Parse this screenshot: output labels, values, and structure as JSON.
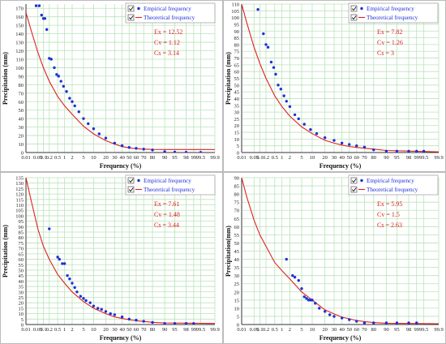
{
  "legend": {
    "empirical_label": "Empirical frequency",
    "theoretical_label": "Theoretical frequency"
  },
  "axes": {
    "xlabel": "Frequency (%)",
    "ylabels": [
      "Precipitation (mm)",
      "Precipitation (mm)",
      "Precipitation (mm)",
      "Precipitation(mm)"
    ]
  },
  "colors": {
    "grid": "#b9e3b9",
    "empirical": "#1f2fd6",
    "theoretical": "#e02020",
    "stats_text": "#e02020",
    "axis": "#333333"
  },
  "chart_data": [
    {
      "type": "scatter",
      "xscale": "probability",
      "x_ticks": [
        0.01,
        0.05,
        0.1,
        0.2,
        0.5,
        1,
        2,
        5,
        10,
        20,
        30,
        40,
        50,
        60,
        70,
        80,
        90,
        95,
        98,
        99,
        99.5,
        99.9
      ],
      "x_tick_labels": [
        "0.01",
        "0.05",
        "0.1",
        "0.2",
        "0.5",
        "1",
        "2",
        "5",
        "10",
        "20",
        "30",
        "40",
        "50",
        "60",
        "70",
        "80",
        "90",
        "95",
        "98",
        "99",
        "99.5",
        "99.9"
      ],
      "ylim": [
        0,
        175
      ],
      "y_ticks": [
        0,
        10,
        20,
        30,
        40,
        50,
        60,
        70,
        80,
        90,
        100,
        110,
        120,
        130,
        140,
        150,
        160,
        170
      ],
      "stats": [
        "Ex = 12.52",
        "Cv = 1.12",
        "Cs = 3.14"
      ],
      "series": [
        {
          "name": "Empirical frequency",
          "points": [
            [
              0.04,
              173
            ],
            [
              0.06,
              173
            ],
            [
              0.08,
              162
            ],
            [
              0.1,
              158
            ],
            [
              0.12,
              158
            ],
            [
              0.15,
              145
            ],
            [
              0.2,
              111
            ],
            [
              0.25,
              110
            ],
            [
              0.35,
              100
            ],
            [
              0.45,
              92
            ],
            [
              0.55,
              90
            ],
            [
              0.7,
              84
            ],
            [
              0.9,
              78
            ],
            [
              1.2,
              72
            ],
            [
              1.6,
              64
            ],
            [
              2,
              60
            ],
            [
              2.5,
              55
            ],
            [
              3.5,
              48
            ],
            [
              5,
              40
            ],
            [
              7,
              34
            ],
            [
              10,
              28
            ],
            [
              14,
              22
            ],
            [
              20,
              17
            ],
            [
              30,
              11
            ],
            [
              40,
              8
            ],
            [
              50,
              6
            ],
            [
              60,
              5
            ],
            [
              70,
              4
            ],
            [
              80,
              3
            ],
            [
              90,
              1
            ],
            [
              95,
              0.5
            ],
            [
              98,
              0.3
            ],
            [
              99.5,
              0.2
            ]
          ]
        },
        {
          "name": "Theoretical frequency",
          "points": [
            [
              0.01,
              165
            ],
            [
              0.02,
              145
            ],
            [
              0.05,
              118
            ],
            [
              0.1,
              100
            ],
            [
              0.2,
              84
            ],
            [
              0.5,
              66
            ],
            [
              1,
              55
            ],
            [
              2,
              45
            ],
            [
              5,
              31
            ],
            [
              10,
              22
            ],
            [
              20,
              14
            ],
            [
              30,
              10
            ],
            [
              40,
              7
            ],
            [
              50,
              5.5
            ],
            [
              60,
              4.5
            ],
            [
              70,
              4
            ],
            [
              80,
              3.6
            ],
            [
              90,
              3.5
            ],
            [
              99.9,
              3.5
            ]
          ]
        }
      ]
    },
    {
      "type": "scatter",
      "xscale": "probability",
      "x_ticks": [
        0.01,
        0.05,
        0.1,
        0.2,
        0.5,
        1,
        2,
        5,
        10,
        20,
        30,
        40,
        50,
        60,
        70,
        80,
        90,
        95,
        98,
        99,
        99.5,
        99.9
      ],
      "x_tick_labels": [
        "0.01",
        "0.05",
        "0.1",
        "0.2",
        "0.5",
        "1",
        "2",
        "5",
        "10",
        "20",
        "30",
        "40",
        "50",
        "60",
        "70",
        "80",
        "90",
        "95",
        "98",
        "99",
        "99.5",
        "99.9"
      ],
      "ylim": [
        0,
        110
      ],
      "y_ticks": [
        0,
        5,
        10,
        15,
        20,
        25,
        30,
        35,
        40,
        45,
        50,
        55,
        60,
        65,
        70,
        75,
        80,
        85,
        90,
        95,
        100,
        105,
        110
      ],
      "stats": [
        "Ex = 7.82",
        "Cv = 1.26",
        "Cs = 3"
      ],
      "series": [
        {
          "name": "Empirical frequency",
          "points": [
            [
              0.08,
              106
            ],
            [
              0.15,
              88
            ],
            [
              0.2,
              80
            ],
            [
              0.25,
              78
            ],
            [
              0.35,
              67
            ],
            [
              0.45,
              63
            ],
            [
              0.55,
              58
            ],
            [
              0.7,
              50
            ],
            [
              0.9,
              47
            ],
            [
              1.2,
              42
            ],
            [
              1.5,
              38
            ],
            [
              2,
              34
            ],
            [
              3,
              28
            ],
            [
              4,
              25
            ],
            [
              6,
              21
            ],
            [
              9,
              17
            ],
            [
              13,
              14
            ],
            [
              20,
              11
            ],
            [
              30,
              9
            ],
            [
              40,
              7
            ],
            [
              50,
              6
            ],
            [
              60,
              5
            ],
            [
              70,
              4
            ],
            [
              80,
              2
            ],
            [
              90,
              1
            ],
            [
              95,
              1
            ],
            [
              98,
              1
            ],
            [
              99,
              1
            ],
            [
              99.5,
              1
            ]
          ]
        },
        {
          "name": "Theoretical frequency",
          "points": [
            [
              0.01,
              110
            ],
            [
              0.02,
              96
            ],
            [
              0.05,
              78
            ],
            [
              0.1,
              66
            ],
            [
              0.2,
              55
            ],
            [
              0.5,
              42
            ],
            [
              1,
              34
            ],
            [
              2,
              27
            ],
            [
              5,
              19
            ],
            [
              10,
              14
            ],
            [
              20,
              9
            ],
            [
              30,
              7
            ],
            [
              40,
              5.5
            ],
            [
              50,
              4.5
            ],
            [
              60,
              3.8
            ],
            [
              70,
              3.2
            ],
            [
              80,
              2.5
            ],
            [
              90,
              1.5
            ],
            [
              99.9,
              0.5
            ]
          ]
        }
      ]
    },
    {
      "type": "scatter",
      "xscale": "probability",
      "x_ticks": [
        0.01,
        0.05,
        0.1,
        0.2,
        0.5,
        1,
        2,
        5,
        10,
        20,
        30,
        40,
        50,
        60,
        70,
        80,
        90,
        95,
        98,
        99,
        99.5,
        99.9
      ],
      "x_tick_labels": [
        "0.01",
        "0.05",
        "0.1",
        "0.2",
        "0.5",
        "1",
        "2",
        "5",
        "10",
        "20",
        "30",
        "40",
        "50",
        "60",
        "70",
        "80",
        "90",
        "95",
        "98",
        "99",
        "99.5",
        "99.9"
      ],
      "ylim": [
        0,
        135
      ],
      "y_ticks": [
        0,
        5,
        10,
        15,
        20,
        25,
        30,
        35,
        40,
        45,
        50,
        55,
        60,
        65,
        70,
        75,
        80,
        85,
        90,
        95,
        100,
        105,
        110,
        115,
        120,
        125,
        130,
        135
      ],
      "stats": [
        "Ex = 7.61",
        "Cv = 1.48",
        "Cs = 3.44"
      ],
      "series": [
        {
          "name": "Empirical frequency",
          "points": [
            [
              0.2,
              88
            ],
            [
              0.5,
              62
            ],
            [
              0.6,
              60
            ],
            [
              0.8,
              56
            ],
            [
              1,
              56
            ],
            [
              1.3,
              45
            ],
            [
              1.6,
              42
            ],
            [
              2,
              38
            ],
            [
              2.5,
              34
            ],
            [
              3,
              30
            ],
            [
              4,
              26
            ],
            [
              5,
              24
            ],
            [
              6,
              22
            ],
            [
              8,
              20
            ],
            [
              10,
              17
            ],
            [
              13,
              15
            ],
            [
              16,
              14
            ],
            [
              20,
              12
            ],
            [
              25,
              10
            ],
            [
              30,
              9
            ],
            [
              40,
              7
            ],
            [
              50,
              5
            ],
            [
              60,
              4
            ],
            [
              70,
              3
            ],
            [
              80,
              2
            ],
            [
              90,
              1
            ],
            [
              95,
              1
            ],
            [
              98,
              1
            ],
            [
              99,
              1
            ]
          ]
        },
        {
          "name": "Theoretical frequency",
          "points": [
            [
              0.01,
              135
            ],
            [
              0.02,
              115
            ],
            [
              0.05,
              88
            ],
            [
              0.1,
              72
            ],
            [
              0.2,
              60
            ],
            [
              0.5,
              46
            ],
            [
              1,
              38
            ],
            [
              2,
              30
            ],
            [
              5,
              21
            ],
            [
              10,
              15
            ],
            [
              20,
              10
            ],
            [
              30,
              7
            ],
            [
              40,
              5.5
            ],
            [
              50,
              4.5
            ],
            [
              60,
              3.5
            ],
            [
              70,
              2.8
            ],
            [
              80,
              2
            ],
            [
              90,
              1.5
            ],
            [
              99.9,
              1
            ]
          ]
        }
      ]
    },
    {
      "type": "scatter",
      "xscale": "probability",
      "x_ticks": [
        0.01,
        0.05,
        0.1,
        0.2,
        0.5,
        1,
        2,
        5,
        10,
        20,
        30,
        40,
        50,
        60,
        70,
        80,
        90,
        95,
        98,
        99,
        99.5,
        99.9
      ],
      "x_tick_labels": [
        "0.01",
        "0.05",
        "0.1",
        "0.2",
        "0.5",
        "1",
        "2",
        "5",
        "10",
        "20",
        "30",
        "40",
        "50",
        "60",
        "70",
        "80",
        "90",
        "95",
        "98",
        "99",
        "99.5",
        "99.9"
      ],
      "ylim": [
        0,
        90
      ],
      "y_ticks": [
        0,
        5,
        10,
        15,
        20,
        25,
        30,
        35,
        40,
        45,
        50,
        55,
        60,
        65,
        70,
        75,
        80,
        85,
        90
      ],
      "stats": [
        "Ex = 5.95",
        "Cv = 1.5",
        "Cs = 2.63"
      ],
      "series": [
        {
          "name": "Empirical frequency",
          "points": [
            [
              1.5,
              40
            ],
            [
              2.5,
              30
            ],
            [
              3,
              29
            ],
            [
              4,
              27
            ],
            [
              5,
              22
            ],
            [
              6,
              17
            ],
            [
              7,
              16
            ],
            [
              8,
              15
            ],
            [
              9,
              15
            ],
            [
              10,
              15
            ],
            [
              12,
              13
            ],
            [
              15,
              10
            ],
            [
              20,
              8
            ],
            [
              25,
              6
            ],
            [
              30,
              5
            ],
            [
              40,
              4
            ],
            [
              50,
              3
            ],
            [
              60,
              2
            ],
            [
              70,
              1
            ],
            [
              80,
              1
            ],
            [
              90,
              1
            ],
            [
              95,
              1
            ],
            [
              98,
              1
            ],
            [
              99,
              1
            ]
          ]
        },
        {
          "name": "Theoretical frequency",
          "points": [
            [
              0.01,
              90
            ],
            [
              0.02,
              78
            ],
            [
              0.05,
              64
            ],
            [
              0.1,
              55
            ],
            [
              0.2,
              48
            ],
            [
              0.5,
              38
            ],
            [
              1,
              33
            ],
            [
              2,
              28
            ],
            [
              5,
              20
            ],
            [
              10,
              15
            ],
            [
              20,
              9
            ],
            [
              30,
              6.5
            ],
            [
              40,
              4.5
            ],
            [
              50,
              3.5
            ],
            [
              60,
              2.5
            ],
            [
              70,
              1.8
            ],
            [
              80,
              1.2
            ],
            [
              90,
              0.8
            ],
            [
              99.9,
              0.5
            ]
          ]
        }
      ]
    }
  ]
}
